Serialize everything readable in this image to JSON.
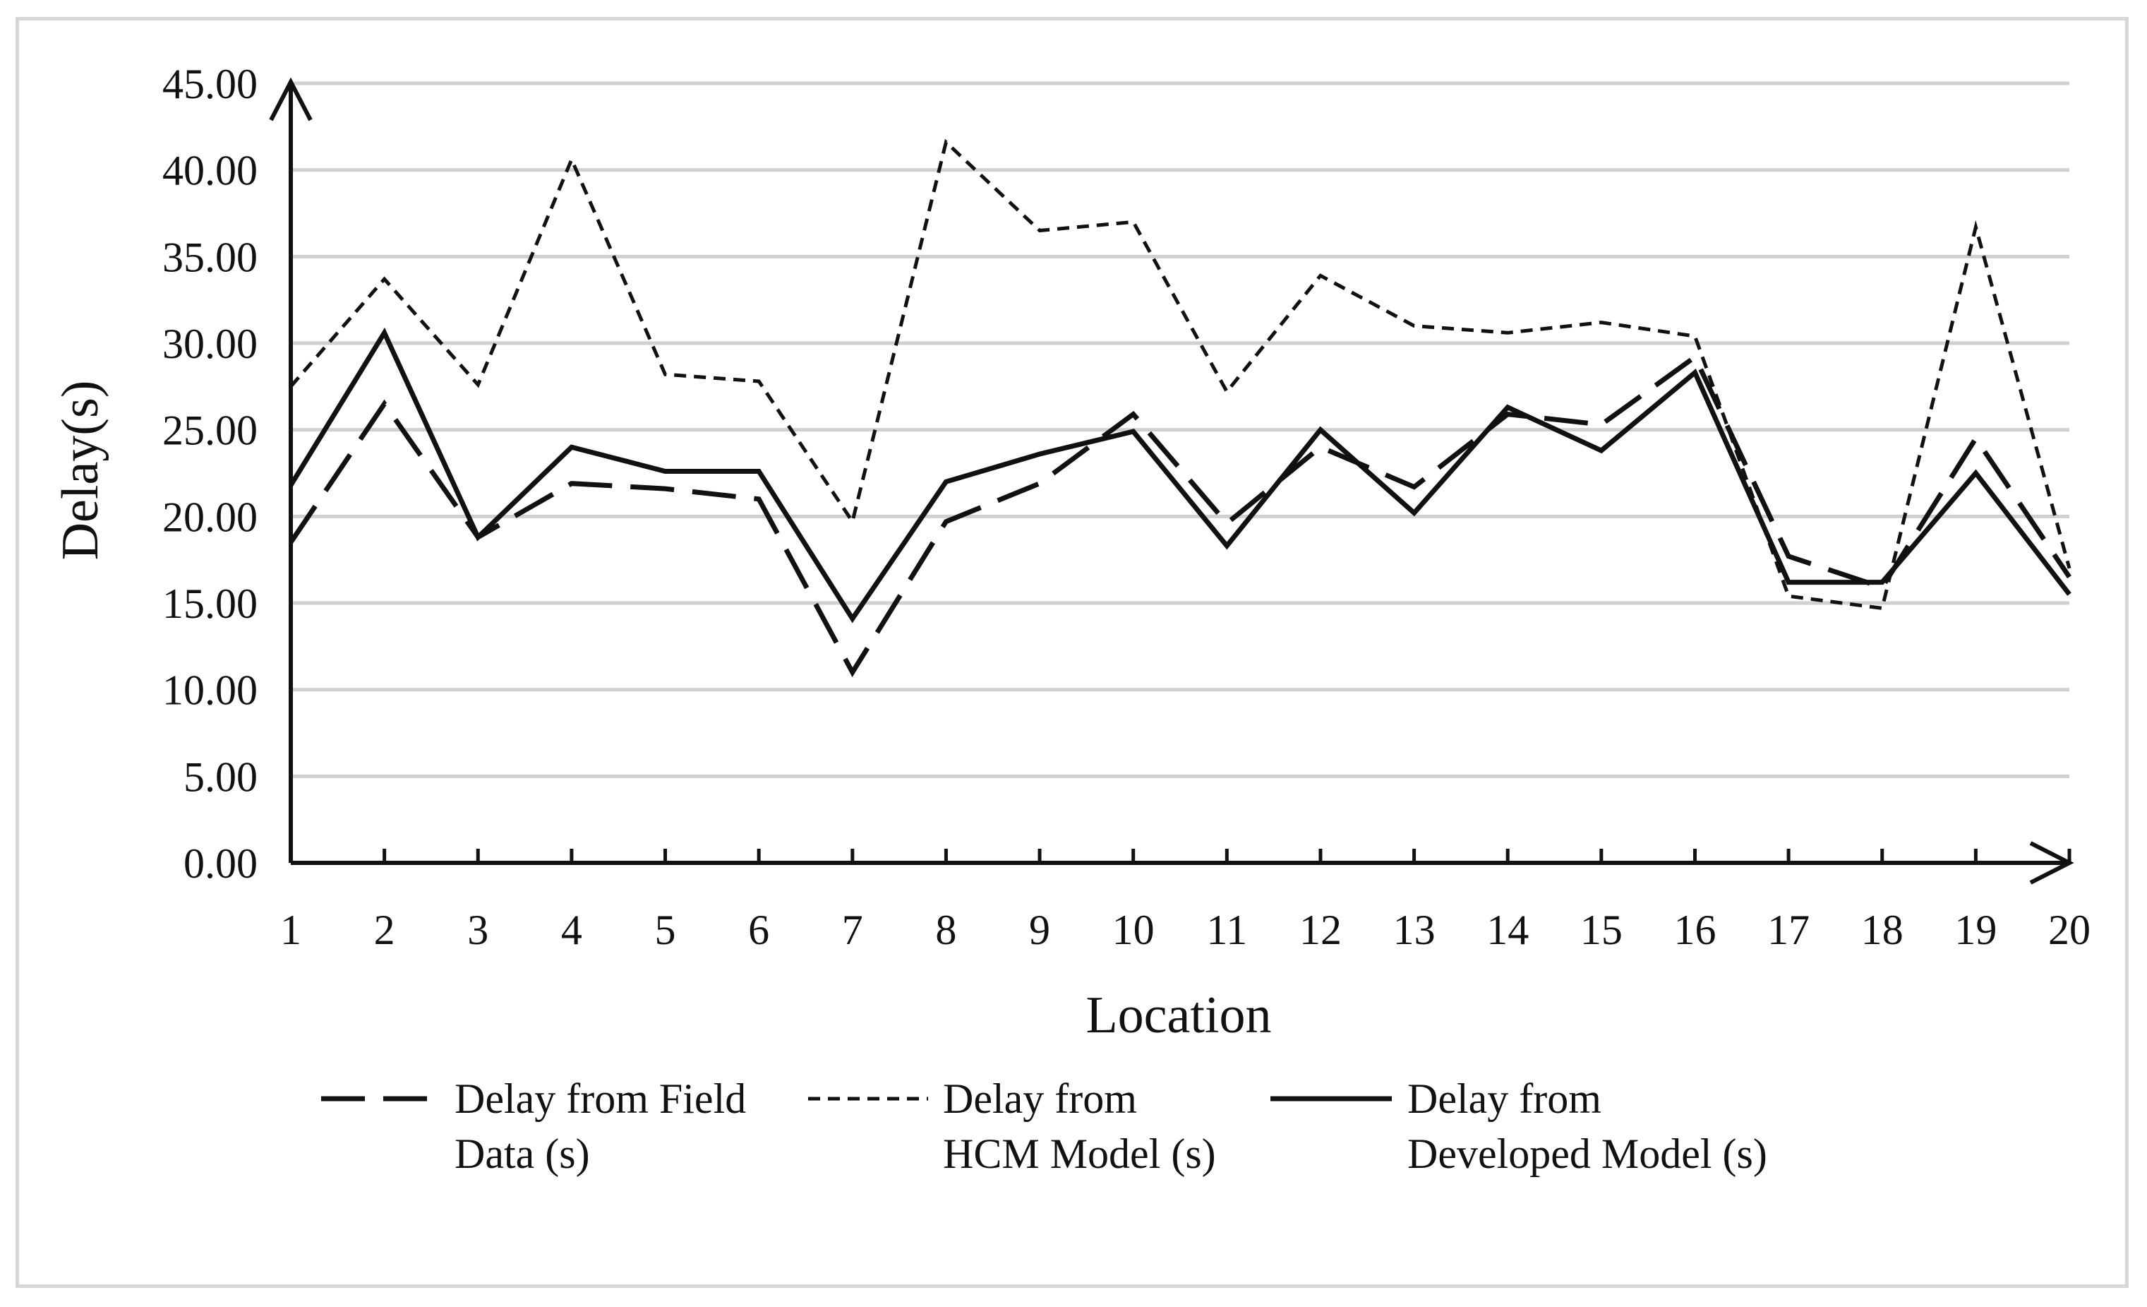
{
  "chart_data": {
    "type": "line",
    "title": "",
    "xlabel": "Location",
    "ylabel": "Delay(s)",
    "ylim": [
      0,
      45
    ],
    "ytick_step": 5,
    "yticks": [
      "0.00",
      "5.00",
      "10.00",
      "15.00",
      "20.00",
      "25.00",
      "30.00",
      "35.00",
      "40.00",
      "45.00"
    ],
    "grid": true,
    "legend_position": "bottom",
    "x": [
      1,
      2,
      3,
      4,
      5,
      6,
      7,
      8,
      9,
      10,
      11,
      12,
      13,
      14,
      15,
      16,
      17,
      18,
      19,
      20
    ],
    "xticks": [
      "1",
      "2",
      "3",
      "4",
      "5",
      "6",
      "7",
      "8",
      "9",
      "10",
      "11",
      "12",
      "13",
      "14",
      "15",
      "16",
      "17",
      "18",
      "19",
      "20"
    ],
    "series": [
      {
        "name": "Delay from Field Data (s)",
        "legend_lines": [
          "Delay from Field",
          "Data (s)"
        ],
        "style": "long-dash",
        "color": "#111111",
        "values": [
          18.5,
          26.5,
          18.8,
          21.9,
          21.6,
          21.0,
          11.0,
          19.7,
          21.9,
          25.9,
          19.6,
          24.0,
          21.7,
          25.9,
          25.3,
          29.2,
          17.7,
          15.9,
          24.5,
          16.5
        ]
      },
      {
        "name": "Delay from HCM Model (s)",
        "legend_lines": [
          "Delay from",
          "HCM Model (s)"
        ],
        "style": "short-dash",
        "color": "#111111",
        "values": [
          27.5,
          33.7,
          27.6,
          40.6,
          28.2,
          27.8,
          19.7,
          41.6,
          36.5,
          37.0,
          27.2,
          33.9,
          31.0,
          30.6,
          31.2,
          30.4,
          15.4,
          14.7,
          36.7,
          17.0
        ]
      },
      {
        "name": "Delay from Developed Model (s)",
        "legend_lines": [
          "Delay from",
          "Developed Model (s)"
        ],
        "style": "solid",
        "color": "#111111",
        "values": [
          21.8,
          30.6,
          18.8,
          24.0,
          22.6,
          22.6,
          14.1,
          22.0,
          23.6,
          24.9,
          18.3,
          25.0,
          20.2,
          26.3,
          23.8,
          28.3,
          16.2,
          16.2,
          22.5,
          15.5
        ]
      }
    ]
  },
  "colors": {
    "gridline": "#d0d0d0",
    "axis": "#111111",
    "frame": "#d6d6d6"
  }
}
